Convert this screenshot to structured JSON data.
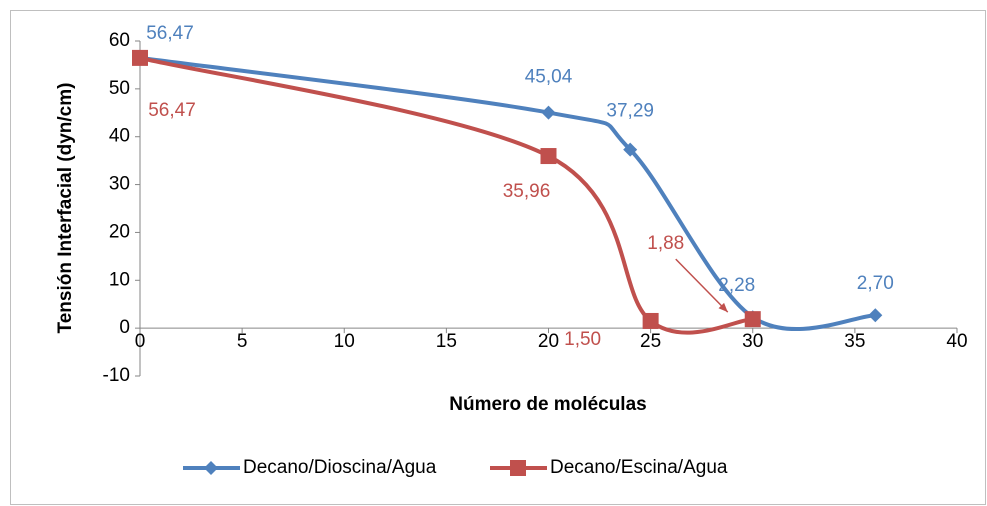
{
  "chart_data": {
    "type": "line",
    "x_label": "Número de moléculas",
    "y_label": "Tensión Interfacial (dyn/cm)",
    "xlim": [
      0,
      40
    ],
    "xticks": [
      0,
      5,
      10,
      15,
      20,
      25,
      30,
      35,
      40
    ],
    "ylim": [
      -10,
      60
    ],
    "yticks": [
      -10,
      0,
      10,
      20,
      30,
      40,
      50,
      60
    ],
    "grid": false,
    "smooth": true,
    "legend": "bottom",
    "series": [
      {
        "name": "Decano/Dioscina/Agua",
        "color": "#4f81bd",
        "marker": "diamond",
        "x": [
          0,
          20,
          24,
          30,
          36
        ],
        "values": [
          56.47,
          45.04,
          37.29,
          2.28,
          2.7
        ],
        "value_labels": [
          "56,47",
          "45,04",
          "37,29",
          "2,28",
          "2,70"
        ]
      },
      {
        "name": "Decano/Escina/Agua",
        "color": "#c0504d",
        "marker": "square",
        "x": [
          0,
          20,
          25,
          30
        ],
        "values": [
          56.47,
          35.96,
          1.5,
          1.88
        ],
        "value_labels": [
          "56,47",
          "35,96",
          "1,50",
          "1,88"
        ]
      }
    ]
  }
}
